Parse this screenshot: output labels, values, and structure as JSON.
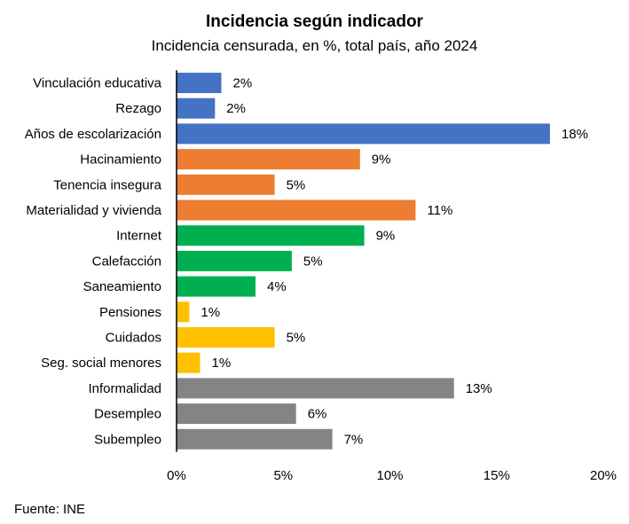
{
  "chart_data": {
    "type": "bar",
    "orientation": "horizontal",
    "title": "Incidencia según indicador",
    "subtitle": "Incidencia censurada, en %, total país, año 2024",
    "source": "Fuente: INE",
    "categories": [
      "Vinculación educativa",
      "Rezago",
      "Años de escolarización",
      "Hacinamiento",
      "Tenencia insegura",
      "Materialidad y vivienda",
      "Internet",
      "Calefacción",
      "Saneamiento",
      "Pensiones",
      "Cuidados",
      "Seg. social menores",
      "Informalidad",
      "Desempleo",
      "Subempleo"
    ],
    "values": [
      2.1,
      1.8,
      17.5,
      8.6,
      4.6,
      11.2,
      8.8,
      5.4,
      3.7,
      0.6,
      4.6,
      1.1,
      13.0,
      5.6,
      7.3
    ],
    "data_labels": [
      "2%",
      "2%",
      "18%",
      "9%",
      "5%",
      "11%",
      "9%",
      "5%",
      "4%",
      "1%",
      "5%",
      "1%",
      "13%",
      "6%",
      "7%"
    ],
    "colors": [
      "#4472C4",
      "#4472C4",
      "#4472C4",
      "#ED7D31",
      "#ED7D31",
      "#ED7D31",
      "#00B050",
      "#00B050",
      "#00B050",
      "#FFC000",
      "#FFC000",
      "#FFC000",
      "#7F7F7F",
      "#7F7F7F",
      "#7F7F7F"
    ],
    "patterned": [
      false,
      false,
      false,
      false,
      false,
      false,
      false,
      false,
      false,
      false,
      false,
      false,
      true,
      true,
      true
    ],
    "xlim": [
      0,
      20
    ],
    "x_ticks": [
      0,
      5,
      10,
      15,
      20
    ],
    "x_tick_labels": [
      "0%",
      "5%",
      "10%",
      "15%",
      "20%"
    ],
    "grid": false,
    "legend": "none"
  }
}
